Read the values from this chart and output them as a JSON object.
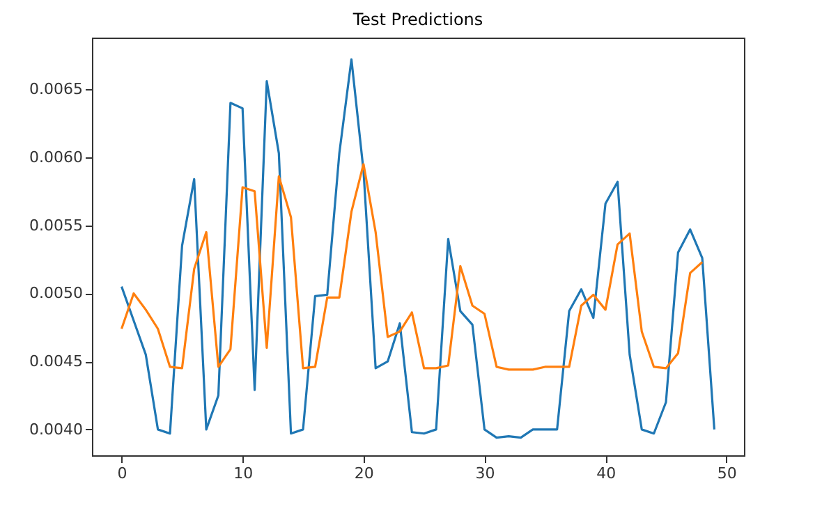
{
  "chart_data": {
    "type": "line",
    "title": "Test Predictions",
    "xlim": [
      -2.45,
      51.45
    ],
    "ylim": [
      0.00381,
      0.00688
    ],
    "xticks": [
      0,
      10,
      20,
      30,
      40,
      50
    ],
    "yticks": [
      {
        "value": 0.004,
        "label": "0.0040"
      },
      {
        "value": 0.0045,
        "label": "0.0045"
      },
      {
        "value": 0.005,
        "label": "0.0050"
      },
      {
        "value": 0.0055,
        "label": "0.0055"
      },
      {
        "value": 0.006,
        "label": "0.0060"
      },
      {
        "value": 0.0065,
        "label": "0.0065"
      }
    ],
    "grid": false,
    "marker": "none",
    "line_style": "solid",
    "series": [
      {
        "color": "#1f77b4",
        "x": [
          0,
          1,
          2,
          3,
          4,
          5,
          6,
          7,
          8,
          9,
          10,
          11,
          12,
          13,
          14,
          15,
          16,
          17,
          18,
          19,
          20,
          21,
          22,
          23,
          24,
          25,
          26,
          27,
          28,
          29,
          30,
          31,
          32,
          33,
          34,
          35,
          36,
          37,
          38,
          39,
          40,
          41,
          42,
          43,
          44,
          45,
          46,
          47,
          48,
          49
        ],
        "values": [
          0.00505,
          0.0048,
          0.00455,
          0.004,
          0.00397,
          0.00535,
          0.00584,
          0.004,
          0.00425,
          0.0064,
          0.00636,
          0.00429,
          0.00656,
          0.00603,
          0.00397,
          0.004,
          0.00498,
          0.00499,
          0.00603,
          0.00672,
          0.0059,
          0.00445,
          0.0045,
          0.00478,
          0.00398,
          0.00397,
          0.004,
          0.0054,
          0.00487,
          0.00477,
          0.004,
          0.00394,
          0.00395,
          0.00394,
          0.004,
          0.004,
          0.004,
          0.00487,
          0.00503,
          0.00482,
          0.00566,
          0.00582,
          0.00455,
          0.004,
          0.00397,
          0.0042,
          0.0053,
          0.00547,
          0.00526,
          0.004
        ]
      },
      {
        "color": "#ff7f0e",
        "x": [
          0,
          1,
          2,
          3,
          4,
          5,
          6,
          7,
          8,
          9,
          10,
          11,
          12,
          13,
          14,
          15,
          16,
          17,
          18,
          19,
          20,
          21,
          22,
          23,
          24,
          25,
          26,
          27,
          28,
          29,
          30,
          31,
          32,
          33,
          34,
          35,
          36,
          37,
          38,
          39,
          40,
          41,
          42,
          43,
          44,
          45,
          46,
          47,
          48
        ],
        "values": [
          0.00474,
          0.005,
          0.00488,
          0.00474,
          0.00446,
          0.00445,
          0.00518,
          0.00545,
          0.00446,
          0.00459,
          0.00578,
          0.00575,
          0.0046,
          0.00586,
          0.00556,
          0.00445,
          0.00446,
          0.00497,
          0.00497,
          0.0056,
          0.00595,
          0.00545,
          0.00468,
          0.00472,
          0.00486,
          0.00445,
          0.00445,
          0.00447,
          0.0052,
          0.00491,
          0.00485,
          0.00446,
          0.00444,
          0.00444,
          0.00444,
          0.00446,
          0.00446,
          0.00446,
          0.00491,
          0.00499,
          0.00488,
          0.00536,
          0.00544,
          0.00472,
          0.00446,
          0.00445,
          0.00456,
          0.00515,
          0.00523
        ]
      }
    ]
  }
}
